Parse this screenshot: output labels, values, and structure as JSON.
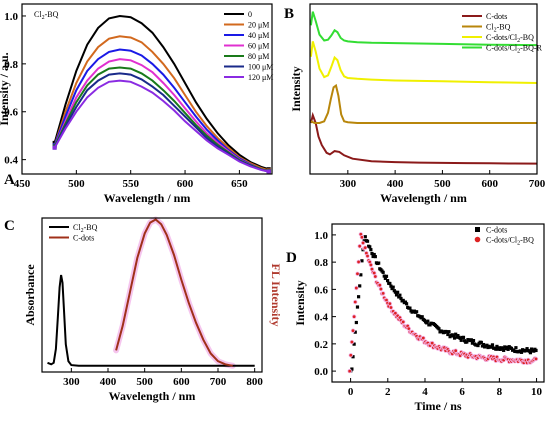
{
  "figure": {
    "panels": [
      {
        "letter": "A",
        "inset_main": "Cl",
        "inset_sub": "2",
        "inset_tail": "-BQ"
      },
      {
        "letter": "B"
      },
      {
        "letter": "C"
      },
      {
        "letter": "D"
      }
    ]
  },
  "chart_data": [
    {
      "id": "A",
      "type": "line",
      "title": "",
      "xlabel": "Wavelength / nm",
      "ylabel": "Intensity / a.u.",
      "xlim": [
        450,
        680
      ],
      "ylim": [
        0.34,
        1.05
      ],
      "xticks": [
        450,
        500,
        550,
        600,
        650
      ],
      "yticks": [
        0.4,
        0.6,
        0.8,
        1.0
      ],
      "yticklabels": [
        "0.4",
        "0.6",
        "0.8",
        "1.0"
      ],
      "legend_placement": "top-right",
      "series": [
        {
          "name": "0",
          "color": "#000000",
          "x": [
            480,
            490,
            500,
            510,
            520,
            530,
            540,
            550,
            560,
            570,
            580,
            590,
            600,
            610,
            620,
            630,
            640,
            650,
            660,
            670,
            677
          ],
          "y": [
            0.47,
            0.63,
            0.77,
            0.88,
            0.95,
            0.99,
            1.0,
            0.995,
            0.97,
            0.93,
            0.87,
            0.8,
            0.72,
            0.64,
            0.57,
            0.51,
            0.46,
            0.42,
            0.39,
            0.37,
            0.36
          ]
        },
        {
          "name": "20 μM",
          "color": "#d2691e",
          "x": [
            480,
            490,
            500,
            510,
            520,
            530,
            540,
            550,
            560,
            570,
            580,
            590,
            600,
            610,
            620,
            630,
            640,
            650,
            660,
            670,
            677
          ],
          "y": [
            0.46,
            0.6,
            0.72,
            0.81,
            0.87,
            0.905,
            0.915,
            0.91,
            0.89,
            0.85,
            0.8,
            0.74,
            0.67,
            0.6,
            0.54,
            0.49,
            0.45,
            0.41,
            0.385,
            0.365,
            0.355
          ]
        },
        {
          "name": "40 μM",
          "color": "#1a1ae6",
          "x": [
            480,
            490,
            500,
            510,
            520,
            530,
            540,
            550,
            560,
            570,
            580,
            590,
            600,
            610,
            620,
            630,
            640,
            650,
            660,
            670,
            677
          ],
          "y": [
            0.46,
            0.58,
            0.69,
            0.77,
            0.82,
            0.85,
            0.86,
            0.855,
            0.835,
            0.8,
            0.755,
            0.7,
            0.64,
            0.58,
            0.525,
            0.48,
            0.44,
            0.405,
            0.38,
            0.36,
            0.352
          ]
        },
        {
          "name": "60 μM",
          "color": "#e030d0",
          "x": [
            480,
            490,
            500,
            510,
            520,
            530,
            540,
            550,
            560,
            570,
            580,
            590,
            600,
            610,
            620,
            630,
            640,
            650,
            660,
            670,
            677
          ],
          "y": [
            0.455,
            0.56,
            0.66,
            0.73,
            0.78,
            0.81,
            0.82,
            0.815,
            0.795,
            0.765,
            0.72,
            0.67,
            0.615,
            0.56,
            0.51,
            0.47,
            0.435,
            0.4,
            0.378,
            0.36,
            0.352
          ]
        },
        {
          "name": "80 μM",
          "color": "#1a7a1a",
          "x": [
            480,
            490,
            500,
            510,
            520,
            530,
            540,
            550,
            560,
            570,
            580,
            590,
            600,
            610,
            620,
            630,
            640,
            650,
            660,
            670,
            677
          ],
          "y": [
            0.455,
            0.55,
            0.64,
            0.71,
            0.755,
            0.78,
            0.785,
            0.78,
            0.76,
            0.73,
            0.69,
            0.645,
            0.595,
            0.545,
            0.5,
            0.462,
            0.43,
            0.398,
            0.377,
            0.36,
            0.352
          ]
        },
        {
          "name": "100 μM",
          "color": "#1a2a8a",
          "x": [
            480,
            490,
            500,
            510,
            520,
            530,
            540,
            550,
            560,
            570,
            580,
            590,
            600,
            610,
            620,
            630,
            640,
            650,
            660,
            670,
            677
          ],
          "y": [
            0.45,
            0.54,
            0.62,
            0.69,
            0.73,
            0.755,
            0.76,
            0.755,
            0.735,
            0.705,
            0.67,
            0.625,
            0.58,
            0.535,
            0.49,
            0.455,
            0.425,
            0.395,
            0.375,
            0.358,
            0.35
          ]
        },
        {
          "name": "120 μM",
          "color": "#8a2be2",
          "x": [
            480,
            490,
            500,
            510,
            520,
            530,
            540,
            550,
            560,
            570,
            580,
            590,
            600,
            610,
            620,
            630,
            640,
            650,
            660,
            670,
            677
          ],
          "y": [
            0.45,
            0.53,
            0.6,
            0.66,
            0.7,
            0.725,
            0.73,
            0.725,
            0.705,
            0.68,
            0.645,
            0.605,
            0.56,
            0.52,
            0.48,
            0.447,
            0.42,
            0.392,
            0.372,
            0.357,
            0.35
          ]
        }
      ]
    },
    {
      "id": "B",
      "type": "line",
      "title": "",
      "xlabel": "Wavelength / nm",
      "ylabel": "Intensity",
      "xlim": [
        220,
        700
      ],
      "ylim": [
        0,
        1
      ],
      "xticks": [
        300,
        400,
        500,
        600,
        700
      ],
      "yticks": [],
      "legend_placement": "top-right",
      "series": [
        {
          "name": "C-dots",
          "color": "#8b1a1a",
          "x": [
            222,
            226,
            232,
            238,
            245,
            255,
            262,
            272,
            282,
            292,
            310,
            350,
            400,
            450,
            500,
            550,
            600,
            650,
            700
          ],
          "y": [
            0.3,
            0.345,
            0.3,
            0.22,
            0.17,
            0.125,
            0.115,
            0.135,
            0.13,
            0.11,
            0.09,
            0.075,
            0.07,
            0.067,
            0.065,
            0.064,
            0.063,
            0.062,
            0.061
          ]
        },
        {
          "name": "Cl2-BQ",
          "color": "#b8860b",
          "x": [
            222,
            230,
            240,
            250,
            258,
            264,
            270,
            275,
            280,
            286,
            292,
            300,
            320,
            350,
            400,
            500,
            600,
            700
          ],
          "y": [
            0.31,
            0.3,
            0.3,
            0.31,
            0.36,
            0.44,
            0.51,
            0.52,
            0.46,
            0.35,
            0.31,
            0.305,
            0.3,
            0.3,
            0.3,
            0.3,
            0.3,
            0.3
          ]
        },
        {
          "name": "C-dots/Cl2-BQ",
          "color": "#f0f000",
          "x": [
            222,
            226,
            232,
            240,
            250,
            258,
            265,
            272,
            278,
            285,
            292,
            300,
            320,
            350,
            400,
            500,
            600,
            700
          ],
          "y": [
            0.69,
            0.78,
            0.72,
            0.62,
            0.57,
            0.58,
            0.63,
            0.685,
            0.67,
            0.61,
            0.575,
            0.565,
            0.56,
            0.555,
            0.55,
            0.545,
            0.54,
            0.535
          ]
        },
        {
          "name": "C-dots/Cl2-BQ-R",
          "color": "#33dd33",
          "x": [
            222,
            226,
            232,
            240,
            250,
            258,
            265,
            272,
            278,
            285,
            292,
            300,
            320,
            350,
            400,
            500,
            600,
            700
          ],
          "y": [
            0.875,
            0.955,
            0.9,
            0.82,
            0.785,
            0.79,
            0.815,
            0.845,
            0.835,
            0.8,
            0.785,
            0.78,
            0.775,
            0.772,
            0.77,
            0.765,
            0.76,
            0.758
          ]
        }
      ]
    },
    {
      "id": "C",
      "type": "line",
      "title": "",
      "xlabel": "Wavelength / nm",
      "ylabel": "Absorbance",
      "y2label": "FL Intensity",
      "xlim": [
        220,
        820
      ],
      "ylim": [
        0,
        1
      ],
      "xticks": [
        300,
        400,
        500,
        600,
        700,
        800
      ],
      "yticks": [],
      "legend_placement": "top-left",
      "series": [
        {
          "name": "Cl2-BQ",
          "color": "#000000",
          "x": [
            235,
            245,
            252,
            258,
            263,
            268,
            272,
            276,
            280,
            285,
            292,
            300,
            320,
            400,
            500,
            600,
            700,
            800
          ],
          "y": [
            0.06,
            0.05,
            0.06,
            0.15,
            0.35,
            0.55,
            0.63,
            0.58,
            0.4,
            0.18,
            0.07,
            0.045,
            0.04,
            0.04,
            0.04,
            0.04,
            0.04,
            0.04
          ]
        },
        {
          "name": "C-dots",
          "color": "#a0301a",
          "x": [
            422,
            440,
            460,
            480,
            500,
            515,
            530,
            545,
            560,
            580,
            600,
            620,
            640,
            660,
            680,
            700,
            720,
            740
          ],
          "y": [
            0.14,
            0.3,
            0.52,
            0.74,
            0.9,
            0.97,
            0.99,
            0.96,
            0.89,
            0.76,
            0.6,
            0.45,
            0.32,
            0.21,
            0.12,
            0.07,
            0.05,
            0.04
          ]
        }
      ]
    },
    {
      "id": "D",
      "type": "scatter",
      "title": "",
      "xlabel": "Time / ns",
      "ylabel": "Intensity",
      "xlim": [
        -1,
        10.4
      ],
      "ylim": [
        -0.08,
        1.08
      ],
      "xticks": [
        0,
        2,
        4,
        6,
        8,
        10
      ],
      "yticks": [
        0.0,
        0.2,
        0.4,
        0.6,
        0.8,
        1.0
      ],
      "yticklabels": [
        "0.0",
        "0.2",
        "0.4",
        "0.6",
        "0.8",
        "1.0"
      ],
      "legend_placement": "top-right",
      "decay": [
        {
          "name": "C-dots",
          "color": "#000000",
          "marker": "square",
          "peak_time": 0.75,
          "rise_start": 0.05,
          "tau": 2.6,
          "floor": 0.12
        },
        {
          "name": "C-dots/Cl2-BQ",
          "color": "#dd2222",
          "marker": "circle",
          "peak_time": 0.55,
          "rise_start": -0.05,
          "tau": 1.9,
          "floor": 0.07
        }
      ]
    }
  ]
}
